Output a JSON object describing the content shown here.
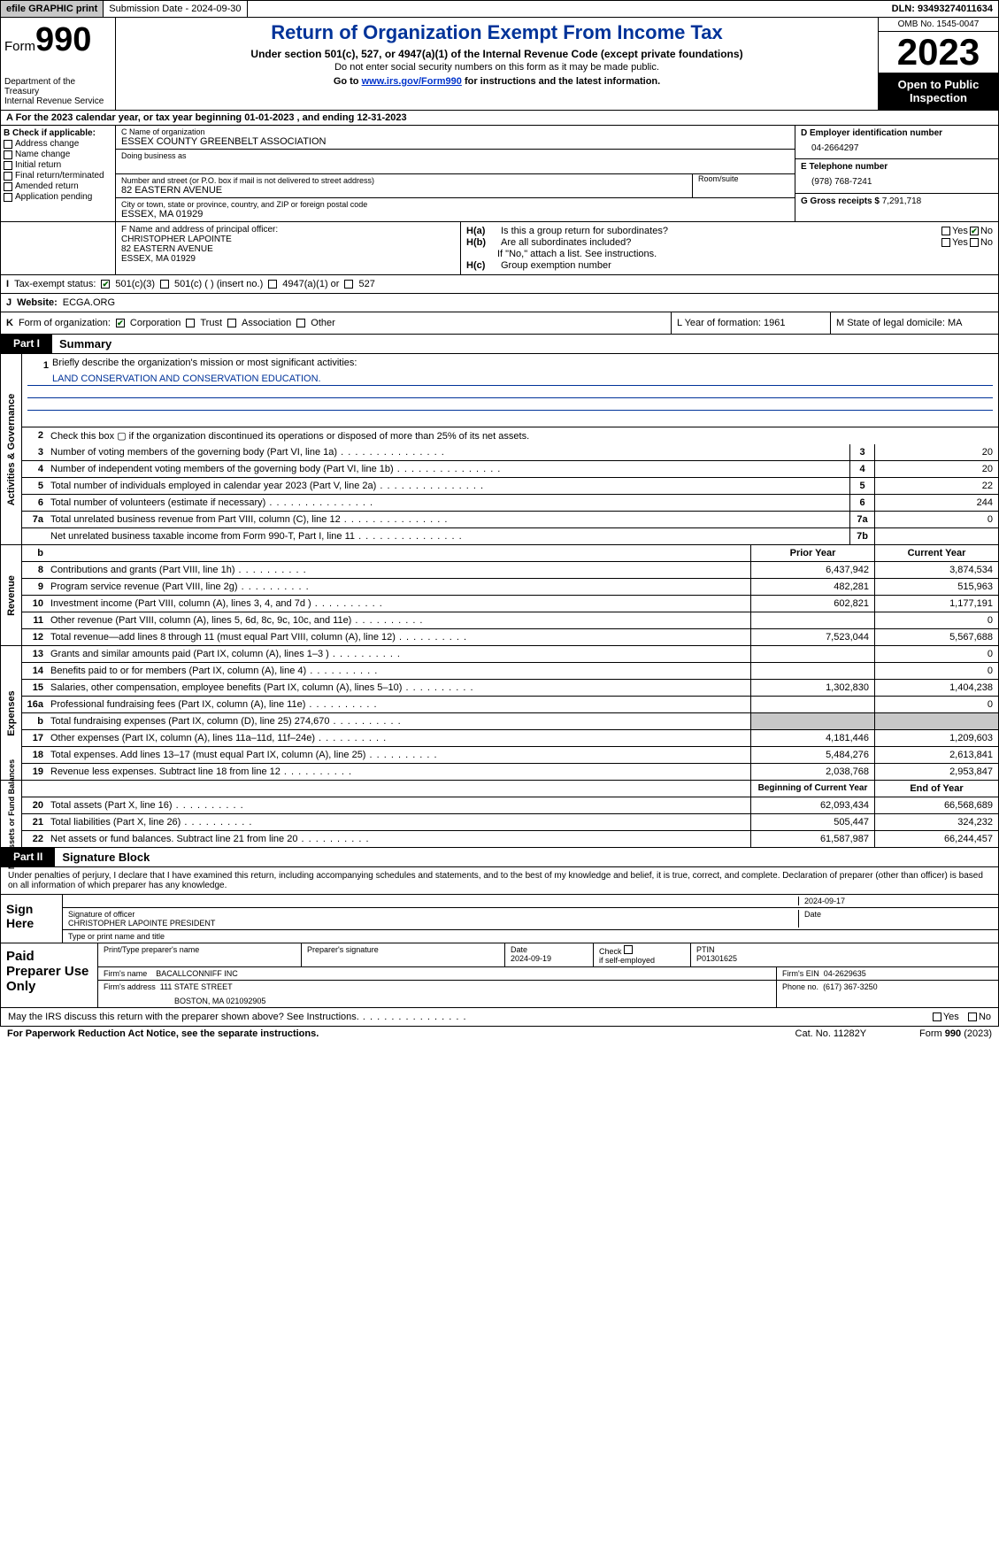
{
  "topbar": {
    "efile": "efile GRAPHIC print",
    "submission": "Submission Date - 2024-09-30",
    "dln": "DLN: 93493274011634"
  },
  "header": {
    "form_prefix": "Form",
    "form_num": "990",
    "dept": "Department of the Treasury\nInternal Revenue Service",
    "title": "Return of Organization Exempt From Income Tax",
    "sub": "Under section 501(c), 527, or 4947(a)(1) of the Internal Revenue Code (except private foundations)",
    "sub2": "Do not enter social security numbers on this form as it may be made public.",
    "sub3_a": "Go to ",
    "sub3_link": "www.irs.gov/Form990",
    "sub3_b": " for instructions and the latest information.",
    "omb": "OMB No. 1545-0047",
    "year": "2023",
    "open": "Open to Public Inspection"
  },
  "line_a": "A For the 2023 calendar year, or tax year beginning 01-01-2023   , and ending 12-31-2023",
  "box_b": {
    "label": "B Check if applicable:",
    "items": [
      "Address change",
      "Name change",
      "Initial return",
      "Final return/terminated",
      "Amended return",
      "Application pending"
    ]
  },
  "box_c": {
    "name_label": "C Name of organization",
    "name": "ESSEX COUNTY GREENBELT ASSOCIATION",
    "dba_label": "Doing business as",
    "dba": "",
    "addr_label": "Number and street (or P.O. box if mail is not delivered to street address)",
    "addr": "82 EASTERN AVENUE",
    "room_label": "Room/suite",
    "city_label": "City or town, state or province, country, and ZIP or foreign postal code",
    "city": "ESSEX, MA  01929"
  },
  "box_d": {
    "ein_label": "D Employer identification number",
    "ein": "04-2664297",
    "tel_label": "E Telephone number",
    "tel": "(978) 768-7241",
    "gross_label": "G Gross receipts $ ",
    "gross": "7,291,718"
  },
  "box_f": {
    "label": "F  Name and address of principal officer:",
    "name": "CHRISTOPHER LAPOINTE",
    "addr1": "82 EASTERN AVENUE",
    "addr2": "ESSEX, MA  01929"
  },
  "box_h": {
    "a_label": "H(a)",
    "a_text": "Is this a group return for subordinates?",
    "b_label": "H(b)",
    "b_text": "Are all subordinates included?",
    "b_note": "If \"No,\" attach a list. See instructions.",
    "c_label": "H(c)",
    "c_text": "Group exemption number",
    "yes": "Yes",
    "no": "No"
  },
  "row_i": {
    "i_label": "I",
    "i_text": "Tax-exempt status:",
    "opt1": "501(c)(3)",
    "opt2": "501(c) (  ) (insert no.)",
    "opt3": "4947(a)(1) or",
    "opt4": "527"
  },
  "row_j": {
    "j_label": "J",
    "j_text": "Website:",
    "j_val": "ECGA.ORG"
  },
  "row_k": {
    "k_label": "K",
    "k_text": "Form of organization:",
    "opts": [
      "Corporation",
      "Trust",
      "Association",
      "Other"
    ],
    "l_text": "L Year of formation: 1961",
    "m_text": "M State of legal domicile: MA"
  },
  "part1": {
    "tag": "Part I",
    "title": "Summary"
  },
  "gov": {
    "side": "Activities & Governance",
    "l1_num": "1",
    "l1": "Briefly describe the organization's mission or most significant activities:",
    "l1_val": "LAND CONSERVATION AND CONSERVATION EDUCATION.",
    "l2_num": "2",
    "l2": "Check this box ▢ if the organization discontinued its operations or disposed of more than 25% of its net assets.",
    "rows": [
      {
        "n": "3",
        "d": "Number of voting members of the governing body (Part VI, line 1a)",
        "box": "3",
        "v": "20"
      },
      {
        "n": "4",
        "d": "Number of independent voting members of the governing body (Part VI, line 1b)",
        "box": "4",
        "v": "20"
      },
      {
        "n": "5",
        "d": "Total number of individuals employed in calendar year 2023 (Part V, line 2a)",
        "box": "5",
        "v": "22"
      },
      {
        "n": "6",
        "d": "Total number of volunteers (estimate if necessary)",
        "box": "6",
        "v": "244"
      },
      {
        "n": "7a",
        "d": "Total unrelated business revenue from Part VIII, column (C), line 12",
        "box": "7a",
        "v": "0"
      },
      {
        "n": "",
        "d": "Net unrelated business taxable income from Form 990-T, Part I, line 11",
        "box": "7b",
        "v": ""
      }
    ]
  },
  "rev": {
    "side": "Revenue",
    "hdr_b": "b",
    "hdr_prior": "Prior Year",
    "hdr_curr": "Current Year",
    "rows": [
      {
        "n": "8",
        "d": "Contributions and grants (Part VIII, line 1h)",
        "p": "6,437,942",
        "c": "3,874,534"
      },
      {
        "n": "9",
        "d": "Program service revenue (Part VIII, line 2g)",
        "p": "482,281",
        "c": "515,963"
      },
      {
        "n": "10",
        "d": "Investment income (Part VIII, column (A), lines 3, 4, and 7d )",
        "p": "602,821",
        "c": "1,177,191"
      },
      {
        "n": "11",
        "d": "Other revenue (Part VIII, column (A), lines 5, 6d, 8c, 9c, 10c, and 11e)",
        "p": "",
        "c": "0"
      },
      {
        "n": "12",
        "d": "Total revenue—add lines 8 through 11 (must equal Part VIII, column (A), line 12)",
        "p": "7,523,044",
        "c": "5,567,688"
      }
    ]
  },
  "exp": {
    "side": "Expenses",
    "rows": [
      {
        "n": "13",
        "d": "Grants and similar amounts paid (Part IX, column (A), lines 1–3 )",
        "p": "",
        "c": "0"
      },
      {
        "n": "14",
        "d": "Benefits paid to or for members (Part IX, column (A), line 4)",
        "p": "",
        "c": "0"
      },
      {
        "n": "15",
        "d": "Salaries, other compensation, employee benefits (Part IX, column (A), lines 5–10)",
        "p": "1,302,830",
        "c": "1,404,238"
      },
      {
        "n": "16a",
        "d": "Professional fundraising fees (Part IX, column (A), line 11e)",
        "p": "",
        "c": "0"
      },
      {
        "n": "b",
        "d": "Total fundraising expenses (Part IX, column (D), line 25) 274,670",
        "p": "SHADE",
        "c": "SHADE"
      },
      {
        "n": "17",
        "d": "Other expenses (Part IX, column (A), lines 11a–11d, 11f–24e)",
        "p": "4,181,446",
        "c": "1,209,603"
      },
      {
        "n": "18",
        "d": "Total expenses. Add lines 13–17 (must equal Part IX, column (A), line 25)",
        "p": "5,484,276",
        "c": "2,613,841"
      },
      {
        "n": "19",
        "d": "Revenue less expenses. Subtract line 18 from line 12",
        "p": "2,038,768",
        "c": "2,953,847"
      }
    ]
  },
  "net": {
    "side": "Net Assets or Fund Balances",
    "hdr_beg": "Beginning of Current Year",
    "hdr_end": "End of Year",
    "rows": [
      {
        "n": "20",
        "d": "Total assets (Part X, line 16)",
        "p": "62,093,434",
        "c": "66,568,689"
      },
      {
        "n": "21",
        "d": "Total liabilities (Part X, line 26)",
        "p": "505,447",
        "c": "324,232"
      },
      {
        "n": "22",
        "d": "Net assets or fund balances. Subtract line 21 from line 20",
        "p": "61,587,987",
        "c": "66,244,457"
      }
    ]
  },
  "part2": {
    "tag": "Part II",
    "title": "Signature Block"
  },
  "sig": {
    "penalty": "Under penalties of perjury, I declare that I have examined this return, including accompanying schedules and statements, and to the best of my knowledge and belief, it is true, correct, and complete. Declaration of preparer (other than officer) is based on all information of which preparer has any knowledge.",
    "sign_here": "Sign Here",
    "date": "2024-09-17",
    "sig_label": "Signature of officer",
    "officer": "CHRISTOPHER LAPOINTE  PRESIDENT",
    "name_label": "Type or print name and title",
    "date_label": "Date"
  },
  "paid": {
    "label": "Paid Preparer Use Only",
    "h1": "Print/Type preparer's name",
    "h2": "Preparer's signature",
    "h3": "Date",
    "h3v": "2024-09-19",
    "h4a": "Check",
    "h4b": "if self-employed",
    "h5": "PTIN",
    "h5v": "P01301625",
    "firm_label": "Firm's name",
    "firm": "BACALLCONNIFF INC",
    "firm_ein_label": "Firm's EIN",
    "firm_ein": "04-2629635",
    "addr_label": "Firm's address",
    "addr1": "111 STATE STREET",
    "addr2": "BOSTON, MA  021092905",
    "phone_label": "Phone no.",
    "phone": "(617) 367-3250"
  },
  "footer": {
    "discuss": "May the IRS discuss this return with the preparer shown above? See Instructions.",
    "yes": "Yes",
    "no": "No",
    "paperwork": "For Paperwork Reduction Act Notice, see the separate instructions.",
    "cat": "Cat. No. 11282Y",
    "form": "Form 990 (2023)"
  }
}
